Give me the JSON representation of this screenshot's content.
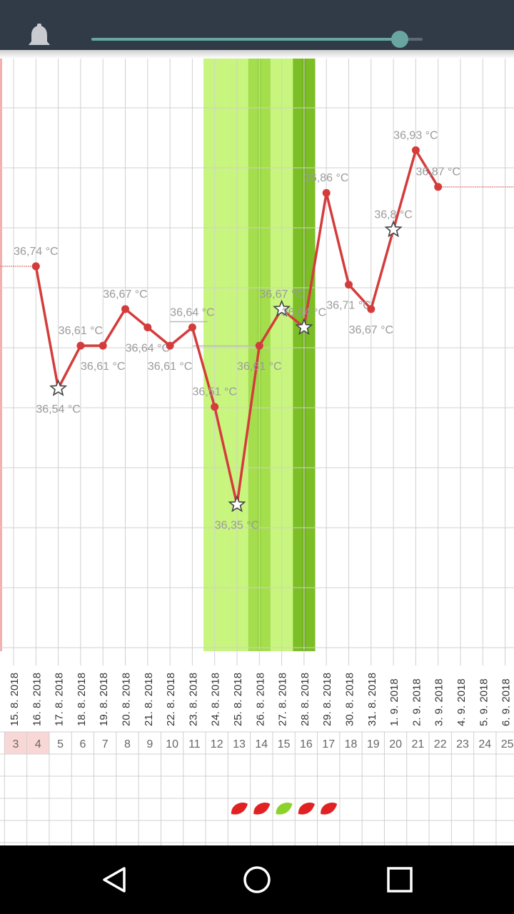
{
  "status_bar": {
    "icon": "bell-icon",
    "slider_value": 0.93
  },
  "colors": {
    "line": "#d43c3c",
    "fertile_light": "#c8f57d",
    "fertile_mid": "#a4de4d",
    "fertile_dark": "#7cbe26",
    "grid": "#d0d0d0",
    "early_days": "#f9d7d7"
  },
  "chart_data": {
    "type": "line",
    "dates": [
      "15. 8. 2018",
      "16. 8. 2018",
      "17. 8. 2018",
      "18. 8. 2018",
      "19. 8. 2018",
      "20. 8. 2018",
      "21. 8. 2018",
      "22. 8. 2018",
      "23. 8. 2018",
      "24. 8. 2018",
      "25. 8. 2018",
      "26. 8. 2018",
      "27. 8. 2018",
      "28. 8. 2018",
      "29. 8. 2018",
      "30. 8. 2018",
      "31. 8. 2018",
      "1. 9. 2018",
      "2. 9. 2018",
      "3. 9. 2018",
      "4. 9. 2018",
      "5. 9. 2018",
      "6. 9. 2018"
    ],
    "cycle_days": [
      "3",
      "4",
      "5",
      "6",
      "7",
      "8",
      "9",
      "10",
      "11",
      "12",
      "13",
      "14",
      "15",
      "16",
      "17",
      "18",
      "19",
      "20",
      "21",
      "22",
      "23",
      "24",
      "25"
    ],
    "temperatures": [
      null,
      36.74,
      36.54,
      36.61,
      36.61,
      36.67,
      36.64,
      36.61,
      36.64,
      36.51,
      36.35,
      36.61,
      36.67,
      36.64,
      36.86,
      36.71,
      36.67,
      36.8,
      36.93,
      36.87,
      null,
      null,
      null
    ],
    "temp_labels": [
      "",
      "36,74 °C",
      "36,54 °C",
      "36,61 °C",
      "36,61 °C",
      "36,67 °C",
      "36,64 °C",
      "36,61 °C",
      "36,64 °C",
      "36,51 °C",
      "36,35 °C",
      "36,61 °C",
      "36,67 °C",
      "36,64 °C",
      "36,86 °C",
      "36,71 °C",
      "36,67 °C",
      "36,8 °C",
      "36,93 °C",
      "36,87 °C",
      "",
      "",
      ""
    ],
    "label_above": [
      false,
      true,
      false,
      true,
      false,
      true,
      false,
      false,
      true,
      true,
      false,
      false,
      true,
      true,
      true,
      false,
      false,
      true,
      true,
      true,
      false,
      false,
      false
    ],
    "star_markers": [
      false,
      false,
      true,
      false,
      false,
      false,
      false,
      false,
      false,
      false,
      true,
      false,
      true,
      true,
      false,
      false,
      false,
      true,
      false,
      false,
      false,
      false,
      false
    ],
    "fertile_levels": [
      0,
      0,
      0,
      0,
      0,
      0,
      0,
      0,
      0,
      1,
      1,
      2,
      1,
      3,
      0,
      0,
      0,
      0,
      0,
      0,
      0,
      0,
      0
    ],
    "early_highlight_days": [
      "3",
      "4"
    ],
    "leaves": [
      {
        "day": "13",
        "color": "#e02222"
      },
      {
        "day": "14",
        "color": "#e02222"
      },
      {
        "day": "15",
        "color": "#8cd22c"
      },
      {
        "day": "16",
        "color": "#e02222"
      },
      {
        "day": "17",
        "color": "#e02222"
      }
    ],
    "baseline": 36.64,
    "coverline": 36.87,
    "ylim": [
      36.11,
      37.08
    ],
    "grid": true
  }
}
